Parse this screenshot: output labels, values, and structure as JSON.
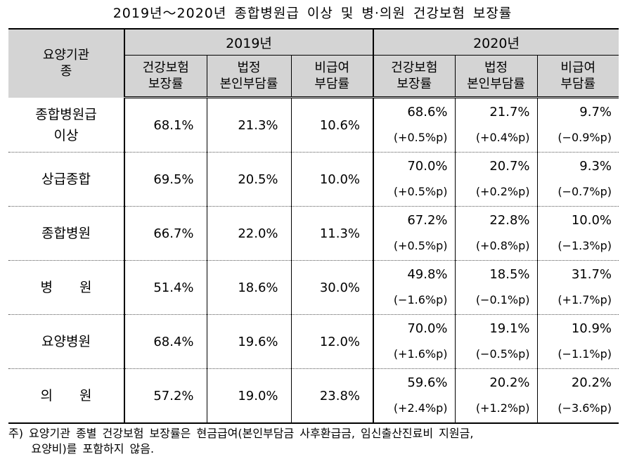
{
  "title": "2019년～2020년 종합병원급 이상 및 병·의원 건강보험 보장률",
  "header": {
    "first_col": "요양기관\n종",
    "years": [
      "2019년",
      "2020년"
    ],
    "subcols": [
      "건강보험\n보장률",
      "법정\n본인부담률",
      "비급여\n부담률"
    ]
  },
  "rows": [
    {
      "name": "종합병원급\n이상",
      "y2019": [
        "68.1%",
        "21.3%",
        "10.6%"
      ],
      "y2020": [
        "68.6%",
        "21.7%",
        "9.7%"
      ],
      "chg": [
        "(+0.5%p)",
        "(+0.4%p)",
        "(−0.9%p)"
      ]
    },
    {
      "name": "상급종합",
      "y2019": [
        "69.5%",
        "20.5%",
        "10.0%"
      ],
      "y2020": [
        "70.0%",
        "20.7%",
        "9.3%"
      ],
      "chg": [
        "(+0.5%p)",
        "(+0.2%p)",
        "(−0.7%p)"
      ]
    },
    {
      "name": "종합병원",
      "y2019": [
        "66.7%",
        "22.0%",
        "11.3%"
      ],
      "y2020": [
        "67.2%",
        "22.8%",
        "10.0%"
      ],
      "chg": [
        "(+0.5%p)",
        "(+0.8%p)",
        "(−1.3%p)"
      ]
    },
    {
      "name": "병　　원",
      "y2019": [
        "51.4%",
        "18.6%",
        "30.0%"
      ],
      "y2020": [
        "49.8%",
        "18.5%",
        "31.7%"
      ],
      "chg": [
        "(−1.6%p)",
        "(−0.1%p)",
        "(+1.7%p)"
      ]
    },
    {
      "name": "요양병원",
      "y2019": [
        "68.4%",
        "19.6%",
        "12.0%"
      ],
      "y2020": [
        "70.0%",
        "19.1%",
        "10.9%"
      ],
      "chg": [
        "(+1.6%p)",
        "(−0.5%p)",
        "(−1.1%p)"
      ]
    },
    {
      "name": "의　　원",
      "y2019": [
        "57.2%",
        "19.0%",
        "23.8%"
      ],
      "y2020": [
        "59.6%",
        "20.2%",
        "20.2%"
      ],
      "chg": [
        "(+2.4%p)",
        "(+1.2%p)",
        "(−3.6%p)"
      ]
    }
  ],
  "note": "주) 요양기관 종별 건강보험 보장률은 현금급여(본인부담금 사후환급금, 임신출산진료비 지원금,\n    요양비)를 포함하지 않음."
}
